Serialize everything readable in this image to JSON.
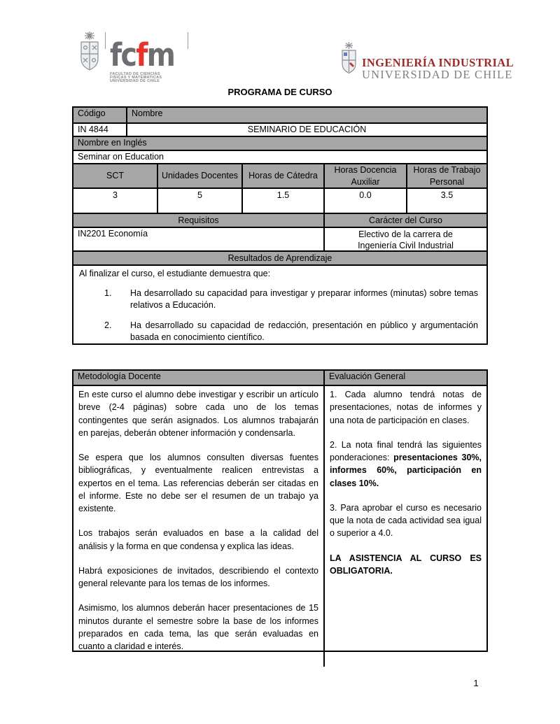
{
  "header": {
    "title": "PROGRAMA DE CURSO",
    "fcfm_logo": {
      "letters_gray_1": "fc",
      "letters_red": "f",
      "letters_gray_2": "m",
      "tagline_line1": "FACULTAD DE CIENCIAS",
      "tagline_line2": "FISICAS Y MATEMATICAS",
      "tagline_line3": "UNIVERSIDAD DE CHILE",
      "red": "#e8332a",
      "gray": "#6d6e71"
    },
    "dii_logo": {
      "line1": "INGENIERÍA INDUSTRIAL",
      "line2": "UNIVERSIDAD DE CHILE",
      "maroon": "#9e2a25",
      "gray": "#7d7f82"
    }
  },
  "course_table": {
    "codigo_label": "Código",
    "codigo_value": "IN 4844",
    "nombre_label": "Nombre",
    "nombre_value": "SEMINARIO DE EDUCACIÓN",
    "nombre_ingles_label": "Nombre en Inglés",
    "nombre_ingles_value": "Seminar on Education",
    "hours_headers": [
      "SCT",
      "Unidades Docentes",
      "Horas de Cátedra",
      "Horas Docencia Auxiliar",
      "Horas de Trabajo Personal"
    ],
    "hours_values": [
      "3",
      "5",
      "1.5",
      "0.0",
      "3.5"
    ],
    "requisitos_label": "Requisitos",
    "requisitos_value": "IN2201 Economía",
    "caracter_label": "Carácter del Curso",
    "caracter_value_line1": "Electivo de la carrera de",
    "caracter_value_line2": "Ingeniería Civil Industrial",
    "resultados_label": "Resultados de Aprendizaje",
    "resultados_intro": "Al finalizar el curso, el estudiante demuestra que:",
    "resultados_items": [
      {
        "num": "1.",
        "text": "Ha desarrollado su capacidad para investigar y preparar informes (minutas) sobre temas relativos a Educación."
      },
      {
        "num": "2.",
        "text": "Ha desarrollado su capacidad de redacción, presentación en público y argumentación basada en conocimiento científico."
      }
    ]
  },
  "method_table": {
    "metodologia_label": "Metodología Docente",
    "evaluacion_label": "Evaluación General",
    "metodologia_paragraphs": [
      [
        {
          "t": "En este curso el alumno debe investigar y escribir un artículo breve (2-4 páginas) sobre cada uno de los temas contingentes que serán asignados. Los alumnos trabajarán en parejas, deberán obtener información y condensarla."
        }
      ],
      [
        {
          "t": "Se espera que los alumnos consulten diversas fuentes bibliográficas, y eventualmente realicen entrevistas a expertos en el tema. Las referencias deberán ser citadas en el informe. Este no debe ser el resumen de un trabajo ya existente."
        }
      ],
      [
        {
          "t": "Los trabajos serán evaluados en base a la calidad del análisis y la forma en que condensa y explica las ideas."
        }
      ],
      [
        {
          "t": "Habrá exposiciones de invitados, describiendo el contexto general relevante para los temas de los informes."
        }
      ],
      [
        {
          "t": "Asimismo, los alumnos deberán hacer presentaciones de 15 minutos durante el semestre sobre la base de los informes preparados en cada tema, las que serán evaluadas en cuanto a claridad e interés."
        }
      ]
    ],
    "evaluacion_paragraphs": [
      [
        {
          "t": "1. Cada alumno tendrá notas de presentaciones, notas de informes y una nota de participación en clases."
        }
      ],
      [
        {
          "t": "2. La nota final tendrá las siguientes ponderaciones: "
        },
        {
          "t": "presentaciones 30%, informes 60%, participación en clases 10%.",
          "b": true
        }
      ],
      [
        {
          "t": "3. Para aprobar el curso es necesario que la nota de cada actividad sea igual o superior a 4.0."
        }
      ],
      [
        {
          "t": "LA ASISTENCIA AL CURSO ES OBLIGATORIA.",
          "b": true
        }
      ]
    ]
  },
  "footer": {
    "page_number": "1"
  },
  "colors": {
    "table_header_bg": "#a6a6a6",
    "border": "#000000"
  }
}
